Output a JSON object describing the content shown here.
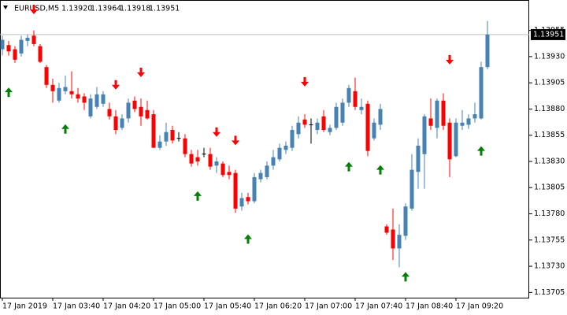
{
  "chart_data": {
    "type": "candlestick",
    "symbol": "EURUSD,M5",
    "last_bar_labels": [
      "1.13920",
      "1.13964",
      "1.13918",
      "1.13951"
    ],
    "categories": [
      "17 Jan 2019",
      null,
      null,
      null,
      null,
      null,
      null,
      null,
      "17 Jan 03:40",
      null,
      null,
      null,
      null,
      null,
      null,
      null,
      "17 Jan 04:20",
      null,
      null,
      null,
      null,
      null,
      null,
      null,
      "17 Jan 05:00",
      null,
      null,
      null,
      null,
      null,
      null,
      null,
      "17 Jan 05:40",
      null,
      null,
      null,
      null,
      null,
      null,
      null,
      "17 Jan 06:20",
      null,
      null,
      null,
      null,
      null,
      null,
      null,
      "17 Jan 07:00",
      null,
      null,
      null,
      null,
      null,
      null,
      null,
      "17 Jan 07:40",
      null,
      null,
      null,
      null,
      null,
      null,
      null,
      "17 Jan 08:40",
      null,
      null,
      null,
      null,
      null,
      null,
      null,
      "17 Jan 09:20",
      null,
      null,
      null,
      null,
      null
    ],
    "open": [
      1.13937,
      1.13941,
      1.13937,
      1.13933,
      1.13945,
      1.1395,
      1.1394,
      1.1392,
      1.13903,
      1.13888,
      1.13897,
      1.13897,
      1.13894,
      1.13892,
      1.13873,
      1.13882,
      1.13885,
      1.1388,
      1.13873,
      1.13862,
      1.13871,
      1.13888,
      1.13882,
      1.13879,
      1.13875,
      1.13843,
      1.13849,
      1.1386,
      1.13852,
      1.13852,
      1.13837,
      1.13834,
      1.13837,
      1.13837,
      1.13826,
      1.13828,
      1.1382,
      1.13819,
      1.13787,
      1.13796,
      1.13792,
      1.13813,
      1.13815,
      1.13826,
      1.13832,
      1.13841,
      1.13843,
      1.13856,
      1.1387,
      1.13865,
      1.1386,
      1.13873,
      1.13858,
      1.13862,
      1.13867,
      1.13886,
      1.13897,
      1.13879,
      1.13885,
      1.13852,
      1.13865,
      1.13768,
      1.13765,
      1.13747,
      1.13759,
      1.13785,
      1.1382,
      1.13837,
      1.13871,
      1.13862,
      1.13888,
      1.13867,
      1.13835,
      1.13864,
      1.13865,
      1.13871,
      1.13871,
      1.1392
    ],
    "high": [
      1.1395,
      1.13945,
      1.1394,
      1.1395,
      1.13951,
      1.13955,
      1.13942,
      1.13922,
      1.13909,
      1.13905,
      1.13912,
      1.13916,
      1.139,
      1.13895,
      1.13894,
      1.13901,
      1.13897,
      1.13886,
      1.13879,
      1.13875,
      1.1389,
      1.13892,
      1.1389,
      1.13888,
      1.13879,
      1.13855,
      1.13867,
      1.13864,
      1.13858,
      1.13856,
      1.13841,
      1.13841,
      1.13843,
      1.13843,
      1.13834,
      1.1383,
      1.13826,
      1.13822,
      1.138,
      1.138,
      1.13819,
      1.13822,
      1.1383,
      1.13841,
      1.13847,
      1.13849,
      1.13864,
      1.13873,
      1.13875,
      1.13871,
      1.13871,
      1.13879,
      1.13865,
      1.13886,
      1.1389,
      1.13903,
      1.1391,
      1.1389,
      1.13888,
      1.13871,
      1.13885,
      1.1377,
      1.13785,
      1.1377,
      1.1379,
      1.13837,
      1.13852,
      1.13875,
      1.1389,
      1.1389,
      1.13895,
      1.13871,
      1.13871,
      1.13879,
      1.13875,
      1.13886,
      1.13925,
      1.13964
    ],
    "low": [
      1.13931,
      1.13931,
      1.13924,
      1.1393,
      1.1394,
      1.1394,
      1.13924,
      1.139,
      1.13886,
      1.13886,
      1.13894,
      1.1389,
      1.13886,
      1.13879,
      1.13871,
      1.1388,
      1.13882,
      1.1387,
      1.13856,
      1.1386,
      1.13867,
      1.13877,
      1.13864,
      1.1387,
      1.13843,
      1.13841,
      1.13845,
      1.13847,
      1.13849,
      1.13834,
      1.13825,
      1.13826,
      1.13834,
      1.13822,
      1.13819,
      1.13815,
      1.13813,
      1.13781,
      1.13783,
      1.13789,
      1.1379,
      1.1381,
      1.13813,
      1.13822,
      1.1383,
      1.13837,
      1.1384,
      1.13852,
      1.13862,
      1.13847,
      1.13856,
      1.13858,
      1.13855,
      1.1386,
      1.13864,
      1.13882,
      1.13879,
      1.13875,
      1.13835,
      1.1385,
      1.1386,
      1.1376,
      1.13736,
      1.13729,
      1.13755,
      1.13783,
      1.13804,
      1.13804,
      1.1386,
      1.13852,
      1.1386,
      1.13815,
      1.13834,
      1.1386,
      1.13861,
      1.13867,
      1.1387,
      1.13918
    ],
    "close": [
      1.13946,
      1.13935,
      1.13927,
      1.13946,
      1.13948,
      1.13942,
      1.13925,
      1.13903,
      1.13897,
      1.139,
      1.13901,
      1.13894,
      1.1389,
      1.13886,
      1.1389,
      1.13894,
      1.13894,
      1.13873,
      1.1386,
      1.13871,
      1.13886,
      1.1388,
      1.13873,
      1.13871,
      1.13843,
      1.13849,
      1.13858,
      1.1385,
      1.13852,
      1.13837,
      1.13828,
      1.1383,
      1.13837,
      1.13825,
      1.1383,
      1.13817,
      1.13817,
      1.13785,
      1.13795,
      1.13792,
      1.13815,
      1.13819,
      1.13826,
      1.13834,
      1.13843,
      1.13845,
      1.1386,
      1.13867,
      1.13865,
      1.13865,
      1.13867,
      1.1386,
      1.13862,
      1.13882,
      1.13886,
      1.139,
      1.13882,
      1.13882,
      1.1384,
      1.13867,
      1.1388,
      1.13762,
      1.13747,
      1.1376,
      1.13787,
      1.13822,
      1.13845,
      1.13873,
      1.13864,
      1.13888,
      1.13864,
      1.13832,
      1.13867,
      1.13867,
      1.13871,
      1.13875,
      1.1392,
      1.13951
    ],
    "up_color": "#4682b4",
    "down_color": "#ff0000",
    "doji_color": "#000000",
    "sell_arrows": [
      null,
      null,
      null,
      null,
      null,
      1.13975,
      null,
      null,
      null,
      null,
      null,
      null,
      null,
      null,
      null,
      null,
      null,
      null,
      1.13903,
      null,
      null,
      null,
      1.13915,
      null,
      null,
      null,
      null,
      null,
      null,
      null,
      null,
      null,
      null,
      null,
      1.13858,
      null,
      null,
      1.1385,
      null,
      null,
      null,
      null,
      null,
      null,
      null,
      null,
      null,
      null,
      1.13906,
      null,
      null,
      null,
      null,
      null,
      null,
      null,
      null,
      null,
      null,
      null,
      null,
      null,
      null,
      null,
      null,
      null,
      null,
      null,
      null,
      null,
      null,
      1.13927,
      null,
      null,
      null,
      null,
      null,
      null
    ],
    "sell_color": "#ff0000",
    "buy_arrows": [
      null,
      1.13896,
      null,
      null,
      null,
      null,
      null,
      null,
      null,
      null,
      1.13861,
      null,
      null,
      null,
      null,
      null,
      null,
      null,
      null,
      null,
      null,
      null,
      null,
      null,
      null,
      null,
      null,
      null,
      null,
      null,
      null,
      1.13797,
      null,
      null,
      null,
      null,
      null,
      null,
      null,
      1.13756,
      null,
      null,
      null,
      null,
      null,
      null,
      null,
      null,
      null,
      null,
      null,
      null,
      null,
      null,
      null,
      1.13825,
      null,
      null,
      null,
      null,
      1.13822,
      null,
      null,
      null,
      1.1372,
      null,
      null,
      null,
      null,
      null,
      null,
      null,
      null,
      null,
      null,
      null,
      1.1384,
      null
    ],
    "buy_color": "#008000",
    "current_price": {
      "value": 1.13951,
      "label": "1.13951"
    },
    "ylim": [
      1.137,
      1.13984
    ],
    "yticks": [
      {
        "value": 1.13705,
        "label": "1.13705"
      },
      {
        "value": 1.1373,
        "label": "1.13730"
      },
      {
        "value": 1.13755,
        "label": "1.13755"
      },
      {
        "value": 1.1378,
        "label": "1.13780"
      },
      {
        "value": 1.13805,
        "label": "1.13805"
      },
      {
        "value": 1.1383,
        "label": "1.13830"
      },
      {
        "value": 1.13855,
        "label": "1.13855"
      },
      {
        "value": 1.1388,
        "label": "1.13880"
      },
      {
        "value": 1.13905,
        "label": "1.13905"
      },
      {
        "value": 1.1393,
        "label": "1.13930"
      },
      {
        "value": 1.13955,
        "label": "1.13955"
      }
    ]
  }
}
